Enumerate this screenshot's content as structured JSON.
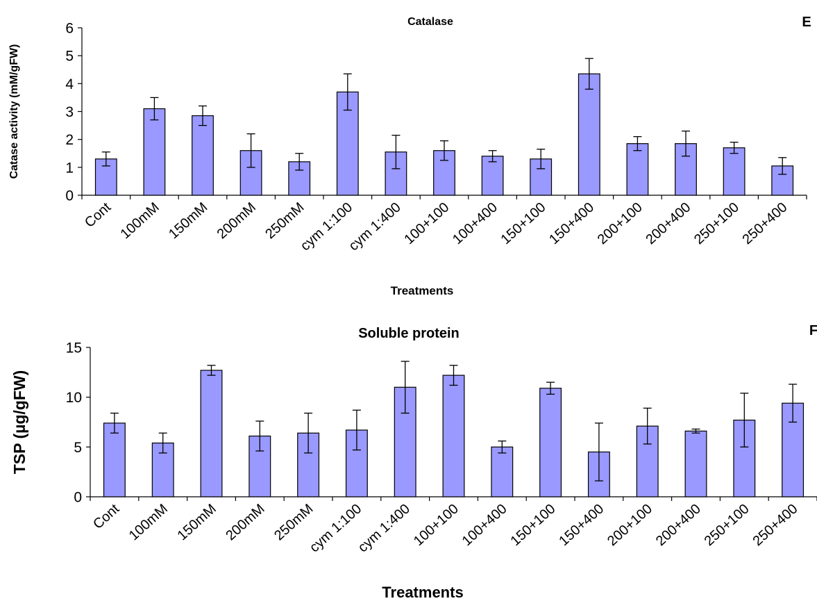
{
  "chart_data": [
    {
      "type": "bar",
      "title": "Catalase",
      "panel_label": "E",
      "xlabel": "Treatments",
      "ylabel": "Catase activity (mM/gFW)",
      "ylim": [
        0,
        6
      ],
      "yticks": [
        0,
        1,
        2,
        3,
        4,
        5,
        6
      ],
      "categories": [
        "Cont",
        "100mM",
        "150mM",
        "200mM",
        "250mM",
        "cym 1:100",
        "cym 1:400",
        "100+100",
        "100+400",
        "150+100",
        "150+400",
        "200+100",
        "200+400",
        "250+100",
        "250+400"
      ],
      "values": [
        1.3,
        3.1,
        2.85,
        1.6,
        1.2,
        3.7,
        1.55,
        1.6,
        1.4,
        1.3,
        4.35,
        1.85,
        1.85,
        1.7,
        1.05
      ],
      "errors": [
        0.25,
        0.4,
        0.35,
        0.6,
        0.3,
        0.65,
        0.6,
        0.35,
        0.2,
        0.35,
        0.55,
        0.25,
        0.45,
        0.2,
        0.3
      ],
      "bar_color": "#9999ff",
      "grid": false
    },
    {
      "type": "bar",
      "title": "Soluble protein",
      "panel_label": "F",
      "xlabel": "Treatments",
      "ylabel": "TSP (µg/gFW)",
      "ylim": [
        0,
        15
      ],
      "yticks": [
        0,
        5,
        10,
        15
      ],
      "categories": [
        "Cont",
        "100mM",
        "150mM",
        "200mM",
        "250mM",
        "cym 1:100",
        "cym 1:400",
        "100+100",
        "100+400",
        "150+100",
        "150+400",
        "200+100",
        "200+400",
        "250+100",
        "250+400"
      ],
      "values": [
        7.4,
        5.4,
        12.7,
        6.1,
        6.4,
        6.7,
        11.0,
        12.2,
        5.0,
        10.9,
        4.5,
        7.1,
        6.6,
        7.7,
        9.4
      ],
      "errors": [
        1.0,
        1.0,
        0.5,
        1.5,
        2.0,
        2.0,
        2.6,
        1.0,
        0.6,
        0.6,
        2.9,
        1.8,
        0.2,
        2.7,
        1.9
      ],
      "bar_color": "#9999ff",
      "grid": false
    }
  ]
}
